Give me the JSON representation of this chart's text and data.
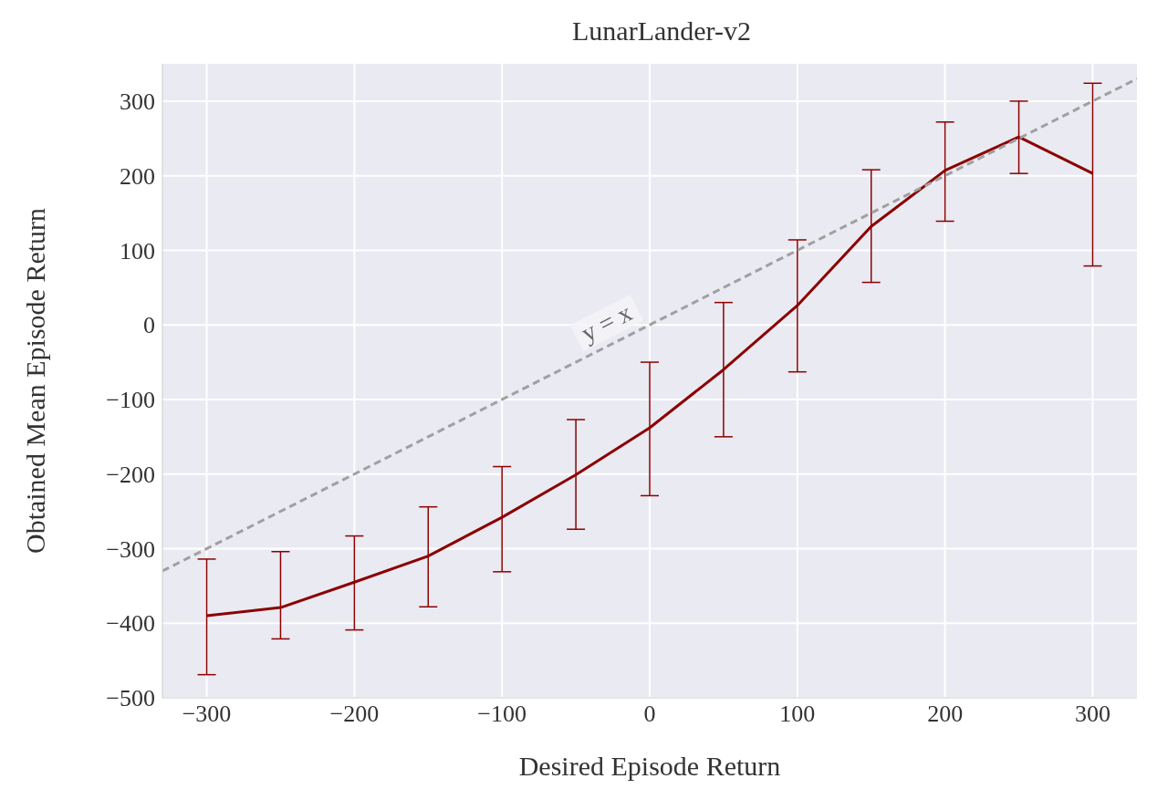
{
  "chart_data": {
    "type": "line",
    "title": "LunarLander-v2",
    "xlabel": "Desired Episode Return",
    "ylabel": "Obtained Mean Episode Return",
    "x": [
      -300,
      -250,
      -200,
      -150,
      -100,
      -50,
      0,
      50,
      100,
      150,
      200,
      250,
      300
    ],
    "series": [
      {
        "type": "line",
        "color": "#8b0000",
        "values": [
          -390,
          -379,
          -345,
          -310,
          -258,
          -201,
          -138,
          -60,
          26,
          132,
          207,
          252,
          203
        ],
        "errors": [
          [
            -469,
            -314
          ],
          [
            -421,
            -304
          ],
          [
            -409,
            -283
          ],
          [
            -378,
            -244
          ],
          [
            -331,
            -190
          ],
          [
            -274,
            -127
          ],
          [
            -229,
            -50
          ],
          [
            -150,
            30
          ],
          [
            -63,
            114
          ],
          [
            57,
            208
          ],
          [
            139,
            272
          ],
          [
            203,
            300
          ],
          [
            79,
            324
          ]
        ],
        "line_style": "solid"
      },
      {
        "type": "line",
        "color": "#a0a0a0",
        "x": [
          -330,
          330
        ],
        "values": [
          -330,
          330
        ],
        "line_style": "dashed"
      }
    ],
    "annotations": [
      "y = x"
    ],
    "xlim": [
      -330,
      330
    ],
    "xticks": [
      -300,
      -200,
      -100,
      0,
      100,
      200,
      300
    ],
    "ylim": [
      -500,
      350
    ],
    "yticks": [
      -500,
      -400,
      -300,
      -200,
      -100,
      0,
      100,
      200,
      300
    ],
    "grid": true,
    "marker": "none"
  }
}
